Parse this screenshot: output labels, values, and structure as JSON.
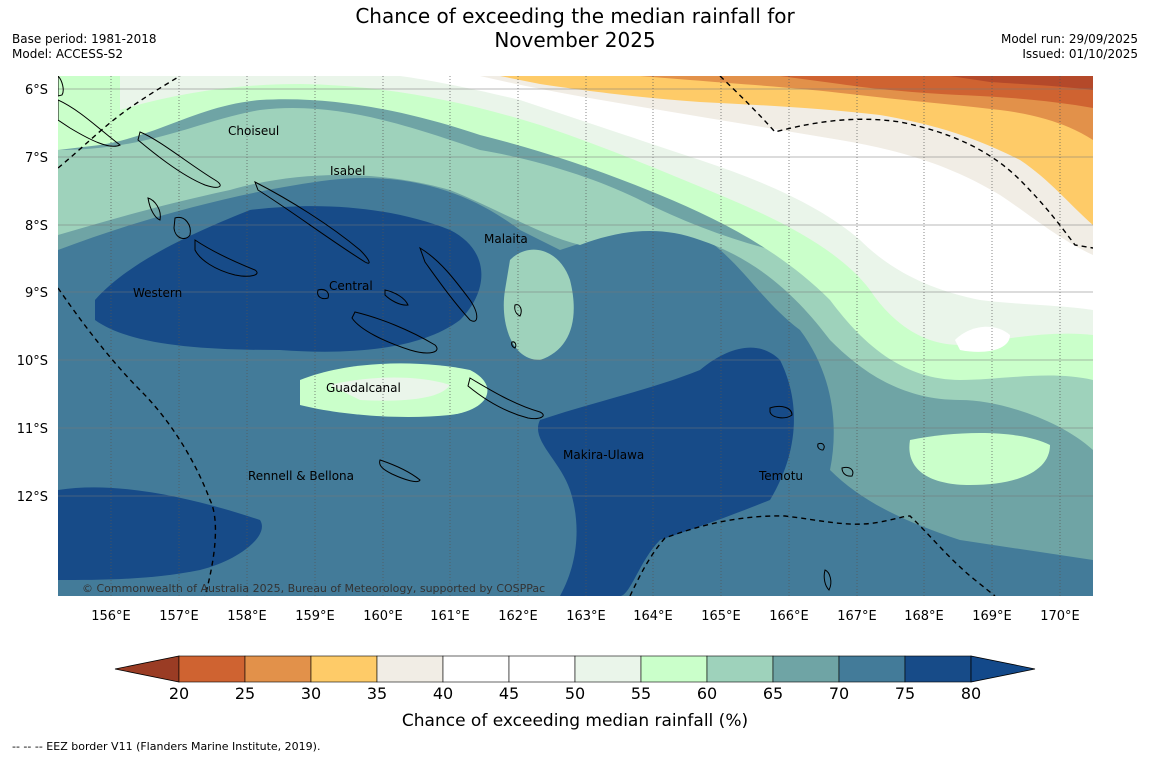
{
  "header": {
    "title_line1": "Chance of exceeding the median rainfall for",
    "title_line2": "November 2025",
    "base_period": "Base period: 1981-2018",
    "model": "Model: ACCESS-S2",
    "model_run": "Model run: 29/09/2025",
    "issued": "Issued: 01/10/2025"
  },
  "map": {
    "lat_labels": [
      "6°S",
      "7°S",
      "8°S",
      "9°S",
      "10°S",
      "11°S",
      "12°S"
    ],
    "lon_labels": [
      "156°E",
      "157°E",
      "158°E",
      "159°E",
      "160°E",
      "161°E",
      "162°E",
      "163°E",
      "164°E",
      "165°E",
      "166°E",
      "167°E",
      "168°E",
      "169°E",
      "170°E"
    ],
    "provinces": [
      "Choiseul",
      "Isabel",
      "Malaita",
      "Western",
      "Central",
      "Guadalcanal",
      "Makira-Ulawa",
      "Rennell & Bellona",
      "Temotu"
    ],
    "copyright": "© Commonwealth of Australia 2025, Bureau of Meteorology, supported by COSPPac"
  },
  "colorbar": {
    "ticks": [
      "20",
      "25",
      "30",
      "35",
      "40",
      "45",
      "50",
      "55",
      "60",
      "65",
      "70",
      "75",
      "80"
    ],
    "colors": [
      "#b4492a",
      "#cf6331",
      "#e2914a",
      "#fecb68",
      "#f1ede5",
      "#ffffff",
      "#ffffff",
      "#eaf5ea",
      "#caffca",
      "#9ed2bb",
      "#6fa4a5",
      "#437b99",
      "#174b88"
    ],
    "under_color": "#9a3c24",
    "over_color": "#13498a",
    "label": "Chance of exceeding median rainfall (%)"
  },
  "footer": {
    "eez_note": "--  --  -- EEZ border V11 (Flanders Marine Institute, 2019)."
  }
}
